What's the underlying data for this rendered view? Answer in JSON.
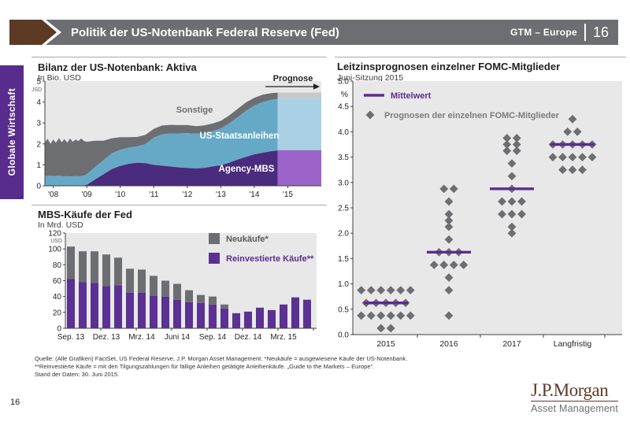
{
  "header": {
    "title": "Politik der US-Notenbank Federal Reserve (Fed)",
    "brand": "GTM – Europe",
    "page": "16"
  },
  "sidebar": {
    "label": "Globale Wirtschaft"
  },
  "pagenum": "16",
  "footer": {
    "line1": "Quelle: (Alle Grafiken) FactSet, US Federal Reserve, J.P. Morgan Asset Management. *Neukäufe = ausgewiesene Käufe der US-Notenbank.",
    "line2": "**Reinvestierte Käufe = mit den Tilgungszahlungen für fällige Anleihen getätigte Anleihenkäufe. „Guide to the Markets – Europe“.",
    "line3": "Stand der Daten: 30. Juni 2015."
  },
  "logo": {
    "mark": "J.P.Morgan",
    "sub": "Asset Management"
  },
  "colors": {
    "header_gray": "#6d6e71",
    "brown": "#5d3a24",
    "sidebar_purple": "#582c8c",
    "plot_bg": "#e8e8e8",
    "axis": "#404041",
    "area_mbs": "#4a2b7d",
    "area_mbs_forecast": "#9c64c8",
    "area_treasuries": "#66a9c7",
    "area_treasuries_forecast": "#a9d1e3",
    "area_other": "#6d6e71",
    "area_other_forecast": "#c8c8ca",
    "bar_purple": "#5b3194",
    "bar_gray": "#6d6e71",
    "dot_gray": "#6d6e71",
    "mean_purple": "#5b2d8e",
    "legend_gray_text": "#58595b",
    "logo_brown": "#5f3926"
  },
  "chart_data": [
    {
      "id": "fed_balance_sheet",
      "type": "area",
      "title": "Bilanz der US-Notenbank: Aktiva",
      "subtitle": "In Bio. USD",
      "unit_label": "USD",
      "ylim": [
        0,
        5
      ],
      "yticks": [
        0,
        1,
        2,
        3,
        4,
        5
      ],
      "xticks": [
        {
          "x": 2008,
          "label": "'08"
        },
        {
          "x": 2009,
          "label": "'09"
        },
        {
          "x": 2010,
          "label": "'10"
        },
        {
          "x": 2011,
          "label": "'11"
        },
        {
          "x": 2012,
          "label": "'12"
        },
        {
          "x": 2013,
          "label": "'13"
        },
        {
          "x": 2014,
          "label": "'14"
        },
        {
          "x": 2015,
          "label": "'15"
        }
      ],
      "series_labels": {
        "other": "Sonstige",
        "treasuries": "US-Staatsanleihen",
        "mbs": "Agency-MBS"
      },
      "forecast_label": "Prognose",
      "forecast_start": 2014.7,
      "x": [
        2007.75,
        2007.83,
        2007.92,
        2008.0,
        2008.08,
        2008.17,
        2008.25,
        2008.33,
        2008.42,
        2008.5,
        2008.58,
        2008.67,
        2008.75,
        2008.83,
        2008.92,
        2009.0,
        2009.25,
        2009.5,
        2009.75,
        2010.0,
        2010.25,
        2010.5,
        2010.75,
        2011.0,
        2011.25,
        2011.5,
        2011.75,
        2012.0,
        2012.25,
        2012.5,
        2012.75,
        2013.0,
        2013.25,
        2013.5,
        2013.75,
        2014.0,
        2014.25,
        2014.5,
        2014.7
      ],
      "mbs": [
        0,
        0,
        0,
        0,
        0,
        0,
        0,
        0,
        0,
        0,
        0,
        0,
        0,
        0,
        0.02,
        0.05,
        0.3,
        0.55,
        0.8,
        0.95,
        1.05,
        1.1,
        1.08,
        1.0,
        0.96,
        0.92,
        0.88,
        0.85,
        0.83,
        0.85,
        0.92,
        0.98,
        1.1,
        1.25,
        1.38,
        1.5,
        1.58,
        1.65,
        1.68
      ],
      "treasuries": [
        0.48,
        0.47,
        0.48,
        0.46,
        0.47,
        0.48,
        0.46,
        0.45,
        0.46,
        0.44,
        0.45,
        0.46,
        0.45,
        0.46,
        0.47,
        0.5,
        0.6,
        0.68,
        0.75,
        0.77,
        0.77,
        0.78,
        0.9,
        1.3,
        1.5,
        1.58,
        1.62,
        1.66,
        1.66,
        1.65,
        1.68,
        1.75,
        1.88,
        2.02,
        2.2,
        2.33,
        2.42,
        2.45,
        2.47
      ],
      "other": [
        1.6,
        1.78,
        1.52,
        1.75,
        1.58,
        1.8,
        1.62,
        1.78,
        1.6,
        1.82,
        1.65,
        1.75,
        1.68,
        1.8,
        1.65,
        1.55,
        1.25,
        0.92,
        0.72,
        0.6,
        0.5,
        0.45,
        0.45,
        0.42,
        0.42,
        0.41,
        0.4,
        0.39,
        0.36,
        0.38,
        0.37,
        0.37,
        0.38,
        0.4,
        0.4,
        0.37,
        0.35,
        0.32,
        0.3
      ],
      "forecast": {
        "mbs": 1.7,
        "treasuries": 2.47,
        "other": 0.28,
        "to": 2016.0
      }
    },
    {
      "id": "fed_mbs_purchases",
      "type": "bar",
      "title": "MBS-Käufe der Fed",
      "subtitle": "In Mrd. USD",
      "unit_label": "USD",
      "ylim": [
        0,
        120
      ],
      "yticks": [
        0,
        20,
        40,
        60,
        80,
        100,
        120
      ],
      "legend": [
        {
          "label": "Neukäufe*",
          "color_key": "bar_gray"
        },
        {
          "label": "Reinvestierte Käufe**",
          "color_key": "bar_purple"
        }
      ],
      "tick_labels": [
        "Sep. 13",
        "Dez. 13",
        "Mrz. 14",
        "Juni 14",
        "Sep. 14",
        "Dez. 14",
        "Mrz. 15"
      ],
      "tick_positions": [
        0,
        3,
        6,
        9,
        12,
        15,
        18
      ],
      "reinvested": [
        62,
        58,
        57,
        53,
        54,
        45,
        45,
        41,
        40,
        36,
        33,
        32,
        30,
        25,
        19,
        21,
        26,
        23,
        30,
        39,
        36
      ],
      "new_purchases": [
        41,
        39,
        40,
        40,
        35,
        30,
        29,
        25,
        20,
        20,
        15,
        10,
        10,
        5,
        0,
        0,
        0,
        0,
        0,
        0,
        0
      ]
    },
    {
      "id": "fomc_dot_plot",
      "type": "scatter",
      "title": "Leitzinsprognosen einzelner FOMC-Mitglieder",
      "subtitle": "Juni-Sitzung 2015",
      "pct_label": "%",
      "ylim": [
        0,
        5
      ],
      "yticks": [
        0,
        0.5,
        1,
        1.5,
        2,
        2.5,
        3,
        3.5,
        4,
        4.5,
        5
      ],
      "legend": {
        "mean": "Mittelwert",
        "dots": "Prognosen der einzelnen FOMC-Mitglieder"
      },
      "categories": [
        "2015",
        "2016",
        "2017",
        "Langfristig"
      ],
      "means": [
        0.625,
        1.625,
        2.875,
        3.75
      ],
      "dots": [
        {
          "category": "2015",
          "points": [
            {
              "v": 0.875,
              "n": 6
            },
            {
              "v": 0.625,
              "n": 5
            },
            {
              "v": 0.375,
              "n": 6
            },
            {
              "v": 0.125,
              "n": 2
            }
          ]
        },
        {
          "category": "2016",
          "points": [
            {
              "v": 2.875,
              "n": 2
            },
            {
              "v": 2.625,
              "n": 1
            },
            {
              "v": 2.375,
              "n": 1
            },
            {
              "v": 2.25,
              "n": 1
            },
            {
              "v": 2.125,
              "n": 1
            },
            {
              "v": 1.875,
              "n": 1
            },
            {
              "v": 1.625,
              "n": 3
            },
            {
              "v": 1.375,
              "n": 4
            },
            {
              "v": 1.125,
              "n": 1
            },
            {
              "v": 0.875,
              "n": 1
            },
            {
              "v": 0.375,
              "n": 1
            }
          ]
        },
        {
          "category": "2017",
          "points": [
            {
              "v": 3.875,
              "n": 2
            },
            {
              "v": 3.75,
              "n": 2
            },
            {
              "v": 3.625,
              "n": 2
            },
            {
              "v": 3.375,
              "n": 1
            },
            {
              "v": 3.125,
              "n": 1
            },
            {
              "v": 2.875,
              "n": 1
            },
            {
              "v": 2.625,
              "n": 3
            },
            {
              "v": 2.375,
              "n": 3
            },
            {
              "v": 2.125,
              "n": 1
            },
            {
              "v": 2.0,
              "n": 1
            }
          ]
        },
        {
          "category": "Langfristig",
          "points": [
            {
              "v": 4.25,
              "n": 1
            },
            {
              "v": 4.0,
              "n": 2
            },
            {
              "v": 3.75,
              "n": 5
            },
            {
              "v": 3.5,
              "n": 5
            },
            {
              "v": 3.25,
              "n": 3
            }
          ]
        }
      ]
    }
  ]
}
